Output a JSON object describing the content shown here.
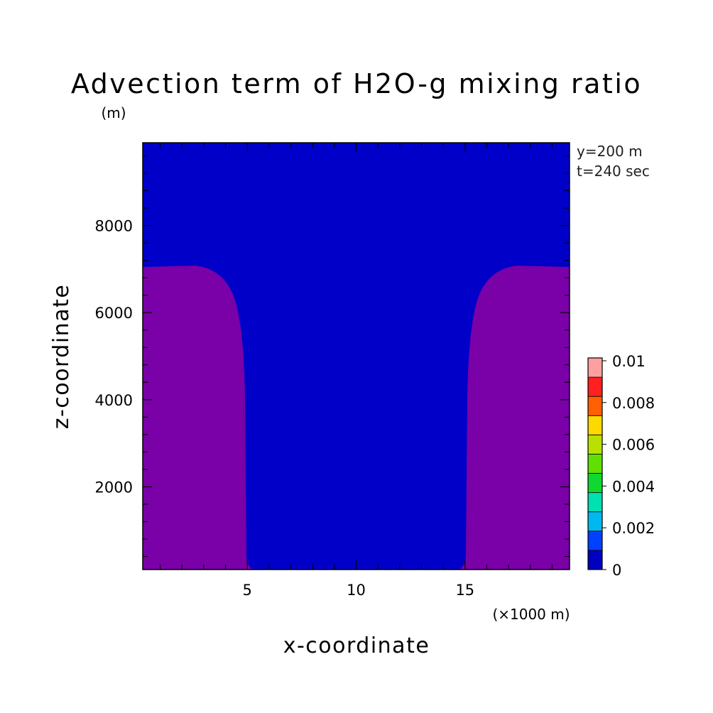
{
  "chart_data": {
    "type": "heatmap",
    "title": "Advection term of H2O-g mixing ratio",
    "xlabel": "x-coordinate",
    "ylabel": "z-coordinate",
    "x_unit": "(×1000 m)",
    "y_unit": "(m)",
    "annotations": [
      "y=200 m",
      "t=240 sec"
    ],
    "xlim": [
      0.2,
      19.8
    ],
    "ylim": [
      100,
      9900
    ],
    "x_ticks": [
      5,
      10,
      15
    ],
    "x_tick_labels": [
      "5",
      "10",
      "15"
    ],
    "y_ticks": [
      2000,
      4000,
      6000,
      8000
    ],
    "y_tick_labels": [
      "2000",
      "4000",
      "6000",
      "8000"
    ],
    "grid": false,
    "colorbar": {
      "placement": "right",
      "tick_labels": [
        "0",
        "0.002",
        "0.004",
        "0.006",
        "0.008",
        "0.01"
      ],
      "colors": [
        "#0000c0",
        "#0040ff",
        "#00b8f0",
        "#00e0b0",
        "#10d830",
        "#60e000",
        "#b8e000",
        "#ffd800",
        "#ff6000",
        "#ff2020",
        "#ffa0a0"
      ],
      "under_color": "#7a00a8"
    },
    "regions": [
      {
        "name": "background",
        "value_range": [
          0,
          0.001
        ],
        "color": "#0000c8"
      },
      {
        "name": "left-lobe",
        "value_range": "below 0",
        "color": "#7a00a8",
        "x_extent": [
          0.2,
          5.0
        ],
        "z_extent": [
          100,
          7100
        ]
      },
      {
        "name": "right-lobe",
        "value_range": "below 0",
        "color": "#7a00a8",
        "x_extent": [
          15.0,
          19.8
        ],
        "z_extent": [
          100,
          7100
        ]
      }
    ]
  }
}
